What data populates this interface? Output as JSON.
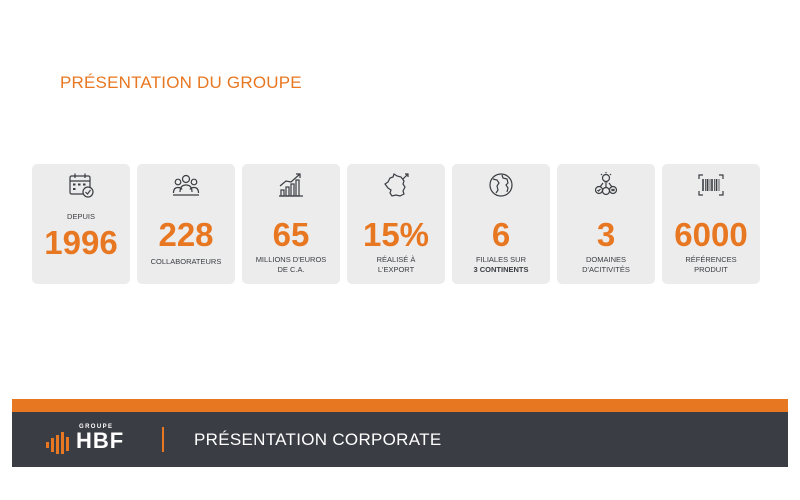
{
  "title": "PRÉSENTATION DU GROUPE",
  "stats": [
    {
      "icon": "calendar-icon",
      "label_top": "DEPUIS",
      "number": "1996"
    },
    {
      "icon": "team-icon",
      "number": "228",
      "label_line1": "COLLABORATEURS"
    },
    {
      "icon": "growth-chart-icon",
      "number": "65",
      "label_line1": "MILLIONS D'EUROS",
      "label_line2": "DE C.A."
    },
    {
      "icon": "france-map-icon",
      "number": "15%",
      "label_line1": "RÉALISÉ À",
      "label_line2": "L'EXPORT"
    },
    {
      "icon": "globe-icon",
      "number": "6",
      "label_line1": "FILIALES SUR",
      "label_line2": "3 CONTINENTS"
    },
    {
      "icon": "lightbulb-icon",
      "number": "3",
      "label_line1": "DOMAINES",
      "label_line2": "D'ACITIVITÉS"
    },
    {
      "icon": "barcode-icon",
      "number": "6000",
      "label_line1": "RÉFÉRENCES",
      "label_line2": "PRODUIT"
    }
  ],
  "footer": {
    "logo_top": "GROUPE",
    "logo_main": "HBF",
    "title": "PRÉSENTATION CORPORATE"
  },
  "colors": {
    "accent": "#e87722",
    "card_bg": "#ececec",
    "footer_bg": "#3b3d44",
    "text": "#3a3d42"
  }
}
